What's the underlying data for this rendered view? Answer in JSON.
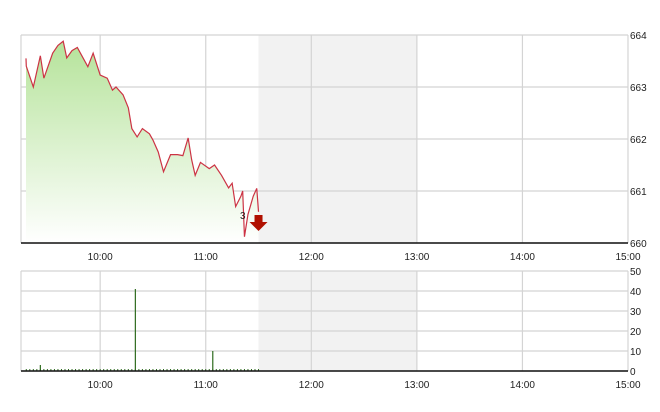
{
  "chart_data": [
    {
      "type": "area",
      "x_range": [
        "09:15",
        "15:00"
      ],
      "ylim": [
        660,
        664
      ],
      "y_ticks": [
        "660",
        "661",
        "662",
        "663",
        "664"
      ],
      "x_ticks": [
        "10:00",
        "11:00",
        "12:00",
        "13:00",
        "14:00",
        "15:00"
      ],
      "grid": true,
      "shaded_break": [
        "11:30",
        "13:00"
      ],
      "colors": {
        "line": "#cc3344",
        "fill_top": "#b5e39a",
        "fill_bottom": "#ffffff",
        "break": "#f2f2f2",
        "marker": "#b01000"
      },
      "marker": {
        "label": "3",
        "icon": "down-arrow-icon",
        "x": "11:30"
      },
      "series": [
        {
          "x": [
            "09:15",
            "09:18",
            "09:22",
            "09:26",
            "09:28",
            "09:33",
            "09:36",
            "09:39",
            "09:41",
            "09:44",
            "09:47",
            "09:53",
            "09:56",
            "10:00",
            "10:04",
            "10:07",
            "10:09",
            "10:13",
            "10:16",
            "10:18",
            "10:21",
            "10:24",
            "10:28",
            "10:30",
            "10:33",
            "10:36",
            "10:40",
            "10:44",
            "10:47",
            "10:50",
            "10:52",
            "10:54",
            "10:57",
            "11:02",
            "11:05",
            "11:09",
            "11:13",
            "11:15",
            "11:17",
            "11:20",
            "11:21",
            "11:22",
            "11:24",
            "11:27",
            "11:29",
            "11:30"
          ],
          "y": [
            663.55,
            663.4,
            663.0,
            663.6,
            663.17,
            663.65,
            663.8,
            663.88,
            663.56,
            663.7,
            663.76,
            663.39,
            663.65,
            663.23,
            663.17,
            662.94,
            663.0,
            662.85,
            662.6,
            662.2,
            662.04,
            662.2,
            662.1,
            661.98,
            661.75,
            661.37,
            661.7,
            661.7,
            661.68,
            662.02,
            661.6,
            661.3,
            661.55,
            661.43,
            661.5,
            661.3,
            661.06,
            661.15,
            660.7,
            660.9,
            661.0,
            660.12,
            660.55,
            660.9,
            661.05,
            660.6
          ]
        }
      ]
    },
    {
      "type": "bar",
      "x_range": [
        "09:15",
        "15:00"
      ],
      "ylim": [
        0,
        50
      ],
      "y_ticks": [
        "0",
        "10",
        "20",
        "30",
        "40",
        "50"
      ],
      "x_ticks": [
        "10:00",
        "11:00",
        "12:00",
        "13:00",
        "14:00",
        "15:00"
      ],
      "grid": true,
      "shaded_break": [
        "11:30",
        "13:00"
      ],
      "colors": {
        "bar": "#2e6b1e",
        "break": "#f2f2f2"
      },
      "series": [
        {
          "x": [
            "09:26",
            "10:20",
            "11:04"
          ],
          "y": [
            3,
            41,
            10
          ],
          "baseline_level": 1
        }
      ]
    }
  ]
}
